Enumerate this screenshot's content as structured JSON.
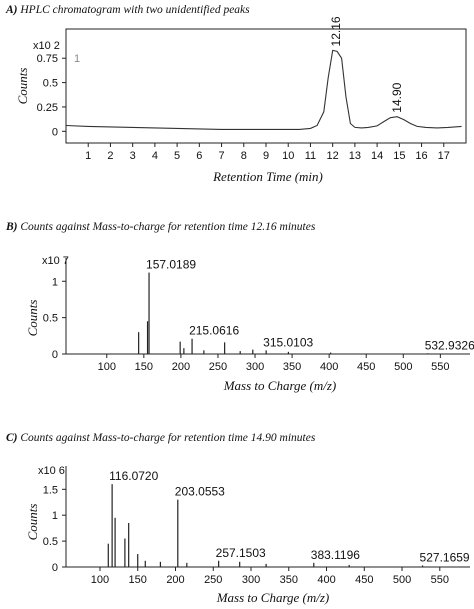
{
  "chart_data": [
    {
      "type": "line",
      "panel_label": "A)",
      "title": "HPLC  chromatogram with two unidentified peaks",
      "multiplier": "x10 2",
      "trace_label": "1",
      "xlabel": "Retention Time (min)",
      "ylabel": "Counts",
      "xlim": [
        0,
        18
      ],
      "ylim": [
        -0.12,
        1.05
      ],
      "xticks": [
        1,
        2,
        3,
        4,
        5,
        6,
        7,
        8,
        9,
        10,
        11,
        12,
        13,
        14,
        15,
        16,
        17
      ],
      "yticks": [
        0,
        0.25,
        0.5,
        0.75
      ],
      "ytick_labels": [
        "0",
        "0.25",
        "0.5",
        "0.75"
      ],
      "series": [
        {
          "x": [
            0,
            1,
            2,
            3,
            4,
            5,
            6,
            7,
            8,
            9,
            10,
            10.5,
            11,
            11.3,
            11.6,
            11.8,
            12,
            12.2,
            12.4,
            12.6,
            12.8,
            13,
            13.3,
            13.6,
            14,
            14.3,
            14.6,
            14.9,
            15.2,
            15.5,
            15.8,
            16.2,
            16.7,
            17.2,
            17.8
          ],
          "y": [
            0.06,
            0.05,
            0.045,
            0.04,
            0.035,
            0.03,
            0.025,
            0.02,
            0.02,
            0.02,
            0.02,
            0.02,
            0.03,
            0.06,
            0.2,
            0.55,
            0.83,
            0.82,
            0.75,
            0.35,
            0.08,
            0.04,
            0.035,
            0.04,
            0.055,
            0.1,
            0.14,
            0.15,
            0.12,
            0.08,
            0.05,
            0.04,
            0.035,
            0.04,
            0.05
          ]
        }
      ],
      "peaks": [
        {
          "x": 12.16,
          "y": 0.83,
          "label": "12.16"
        },
        {
          "x": 14.9,
          "y": 0.15,
          "label": "14.90"
        }
      ]
    },
    {
      "type": "bar",
      "panel_label": "B)",
      "title": "Counts against Mass-to-charge for retention time 12.16 minutes",
      "multiplier": "x10 7",
      "xlabel": "Mass to Charge (m/z)",
      "ylabel": "Counts",
      "xlim": [
        45,
        590
      ],
      "ylim": [
        0,
        1.32
      ],
      "xticks": [
        100,
        150,
        200,
        250,
        300,
        350,
        400,
        450,
        500,
        550
      ],
      "xtick_labels": [
        "100",
        "150",
        "200",
        "250",
        "300",
        "350",
        "400",
        "450",
        "500",
        "550"
      ],
      "yticks": [
        0,
        0.5,
        1
      ],
      "ytick_labels": [
        "0",
        "0.5",
        "1"
      ],
      "peaks": [
        {
          "mz": 143,
          "value": 0.3
        },
        {
          "mz": 155,
          "value": 0.45
        },
        {
          "mz": 157.0189,
          "value": 1.12,
          "label": "157.0189"
        },
        {
          "mz": 199,
          "value": 0.17
        },
        {
          "mz": 204,
          "value": 0.08
        },
        {
          "mz": 215.0616,
          "value": 0.21,
          "label": "215.0616"
        },
        {
          "mz": 231,
          "value": 0.05
        },
        {
          "mz": 259,
          "value": 0.16
        },
        {
          "mz": 280,
          "value": 0.04
        },
        {
          "mz": 297,
          "value": 0.06
        },
        {
          "mz": 315.0103,
          "value": 0.05,
          "label": "315.0103"
        },
        {
          "mz": 345,
          "value": 0.03
        },
        {
          "mz": 402,
          "value": 0.02
        },
        {
          "mz": 532.9326,
          "value": 0.01,
          "label": "532.9326"
        }
      ]
    },
    {
      "type": "bar",
      "panel_label": "C)",
      "title": "Counts against Mass-to-charge for retention time 14.90 minutes",
      "multiplier": "x10 6",
      "xlabel": "Mass to Charge (m/z)",
      "ylabel": "Counts",
      "xlim": [
        55,
        590
      ],
      "ylim": [
        0,
        1.95
      ],
      "xticks": [
        100,
        150,
        200,
        250,
        300,
        350,
        400,
        450,
        500,
        550
      ],
      "xtick_labels": [
        "100",
        "150",
        "200",
        "250",
        "300",
        "350",
        "400",
        "450",
        "500",
        "550"
      ],
      "yticks": [
        0,
        0.5,
        1,
        1.5
      ],
      "ytick_labels": [
        "0",
        "0.5",
        "1",
        "1.5"
      ],
      "peaks": [
        {
          "mz": 111,
          "value": 0.45
        },
        {
          "mz": 116.072,
          "value": 1.6,
          "label": "116.0720"
        },
        {
          "mz": 120,
          "value": 0.95
        },
        {
          "mz": 133,
          "value": 0.55
        },
        {
          "mz": 138,
          "value": 0.85
        },
        {
          "mz": 150,
          "value": 0.25
        },
        {
          "mz": 160,
          "value": 0.12
        },
        {
          "mz": 180,
          "value": 0.1
        },
        {
          "mz": 203.0553,
          "value": 1.3,
          "label": "203.0553"
        },
        {
          "mz": 215,
          "value": 0.08
        },
        {
          "mz": 257.1503,
          "value": 0.12,
          "label": "257.1503"
        },
        {
          "mz": 285,
          "value": 0.1
        },
        {
          "mz": 320,
          "value": 0.06
        },
        {
          "mz": 383.1196,
          "value": 0.08,
          "label": "383.1196"
        },
        {
          "mz": 430,
          "value": 0.04
        },
        {
          "mz": 527.1659,
          "value": 0.03,
          "label": "527.1659"
        }
      ]
    }
  ]
}
